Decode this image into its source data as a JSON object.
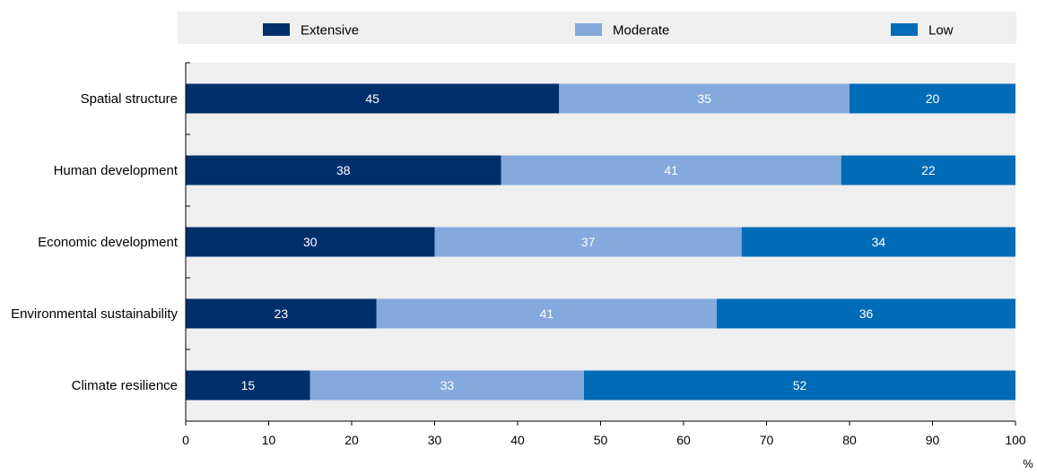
{
  "chart_data": {
    "type": "bar",
    "orientation": "horizontal",
    "stacked": true,
    "categories": [
      "Spatial structure",
      "Human development",
      "Economic development",
      "Environmental sustainability",
      "Climate resilience"
    ],
    "series": [
      {
        "name": "Extensive",
        "color": "#002f6c",
        "values": [
          45,
          38,
          30,
          23,
          15
        ]
      },
      {
        "name": "Moderate",
        "color": "#84a9dc",
        "values": [
          35,
          41,
          37,
          41,
          33
        ]
      },
      {
        "name": "Low",
        "color": "#006bb6",
        "values": [
          20,
          22,
          34,
          36,
          52
        ]
      }
    ],
    "xlim": [
      0,
      100
    ],
    "xticks": [
      0,
      10,
      20,
      30,
      40,
      50,
      60,
      70,
      80,
      90,
      100
    ],
    "xunit": "%",
    "legend_position": "top",
    "grid": false,
    "data_label_colors": {
      "Extensive": "#ffffff",
      "Moderate": "#ffffff",
      "Low": "#ffffff"
    },
    "plot_background": "#efefef"
  }
}
